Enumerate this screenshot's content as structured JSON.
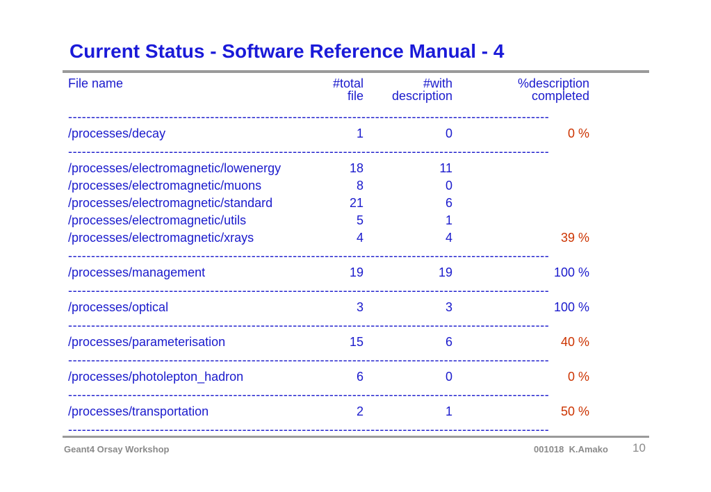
{
  "title": "Current Status - Software Reference Manual - 4",
  "headers": {
    "file_name": "File name",
    "total_1": "#total",
    "total_2": "file",
    "with_1": "#with",
    "with_2": "description",
    "pct_1": "%description",
    "pct_2": "completed"
  },
  "separator": "---------------------------------------------------------------------------------------------------------",
  "groups": [
    {
      "rows": [
        {
          "name": "/processes/decay",
          "total": "1",
          "with": "0",
          "pct": "0 %"
        }
      ]
    },
    {
      "rows": [
        {
          "name": "/processes/electromagnetic/lowenergy",
          "total": "18",
          "with": "11",
          "pct": ""
        },
        {
          "name": "/processes/electromagnetic/muons",
          "total": "8",
          "with": "0",
          "pct": ""
        },
        {
          "name": "/processes/electromagnetic/standard",
          "total": "21",
          "with": "6",
          "pct": ""
        },
        {
          "name": "/processes/electromagnetic/utils",
          "total": "5",
          "with": "1",
          "pct": ""
        },
        {
          "name": "/processes/electromagnetic/xrays",
          "total": "4",
          "with": "4",
          "pct": "39 %"
        }
      ]
    },
    {
      "rows": [
        {
          "name": "/processes/management",
          "total": "19",
          "with": "19",
          "pct": "100 %"
        }
      ]
    },
    {
      "rows": [
        {
          "name": "/processes/optical",
          "total": "3",
          "with": "3",
          "pct": "100 %"
        }
      ]
    },
    {
      "rows": [
        {
          "name": "/processes/parameterisation",
          "total": "15",
          "with": "6",
          "pct": "40 %"
        }
      ]
    },
    {
      "rows": [
        {
          "name": "/processes/photolepton_hadron",
          "total": "6",
          "with": "0",
          "pct": "0 %"
        }
      ]
    },
    {
      "rows": [
        {
          "name": "/processes/transportation",
          "total": "2",
          "with": "1",
          "pct": "50 %"
        }
      ]
    }
  ],
  "colors": {
    "text": "#1a1acc",
    "title": "#1a1ad8",
    "highlight": "#cc3300",
    "footer": "#8a8a8a"
  },
  "footer": {
    "left": "Geant4 Orsay Workshop",
    "right": "001018  K.Amako",
    "page": "10"
  }
}
